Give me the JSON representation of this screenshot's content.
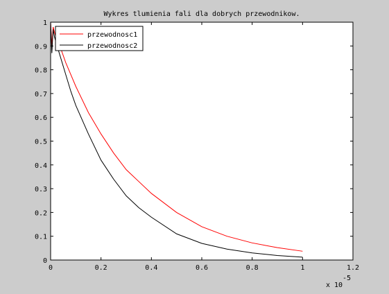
{
  "chart_data": {
    "type": "line",
    "title": "Wykres tlumienia fali dla dobrych przewodnikow.",
    "xlabel": "",
    "ylabel": "",
    "xlim": [
      0,
      1.2
    ],
    "ylim": [
      0,
      1
    ],
    "x_scale_note": "x 10",
    "x_scale_exponent": "-5",
    "xticks": [
      0,
      0.2,
      0.4,
      0.6,
      0.8,
      1,
      1.2
    ],
    "xtick_labels": [
      "0",
      "0.2",
      "0.4",
      "0.6",
      "0.8",
      "1",
      "1.2"
    ],
    "yticks": [
      0,
      0.1,
      0.2,
      0.3,
      0.4,
      0.5,
      0.6,
      0.7,
      0.8,
      0.9,
      1
    ],
    "ytick_labels": [
      "0",
      "0.1",
      "0.2",
      "0.3",
      "0.4",
      "0.5",
      "0.6",
      "0.7",
      "0.8",
      "0.9",
      "1"
    ],
    "grid": false,
    "legend_position": "top-left",
    "series": [
      {
        "name": "przewodnosc1",
        "color": "#ff0000",
        "x": [
          0,
          0.005,
          0.01,
          0.015,
          0.02,
          0.04,
          0.06,
          0.08,
          0.1,
          0.15,
          0.2,
          0.25,
          0.3,
          0.35,
          0.4,
          0.5,
          0.6,
          0.7,
          0.8,
          0.9,
          1
        ],
        "y": [
          1,
          0.9,
          0.98,
          0.96,
          0.94,
          0.89,
          0.83,
          0.78,
          0.73,
          0.62,
          0.53,
          0.45,
          0.38,
          0.33,
          0.28,
          0.2,
          0.14,
          0.1,
          0.072,
          0.052,
          0.037
        ]
      },
      {
        "name": "przewodnosc2",
        "color": "#000000",
        "x": [
          0,
          0.005,
          0.01,
          0.015,
          0.02,
          0.04,
          0.06,
          0.08,
          0.1,
          0.15,
          0.2,
          0.25,
          0.3,
          0.35,
          0.4,
          0.5,
          0.6,
          0.7,
          0.8,
          0.9,
          1
        ],
        "y": [
          1,
          0.87,
          0.97,
          0.94,
          0.92,
          0.85,
          0.78,
          0.71,
          0.65,
          0.53,
          0.42,
          0.34,
          0.27,
          0.22,
          0.18,
          0.11,
          0.07,
          0.046,
          0.03,
          0.019,
          0.012
        ]
      }
    ]
  }
}
